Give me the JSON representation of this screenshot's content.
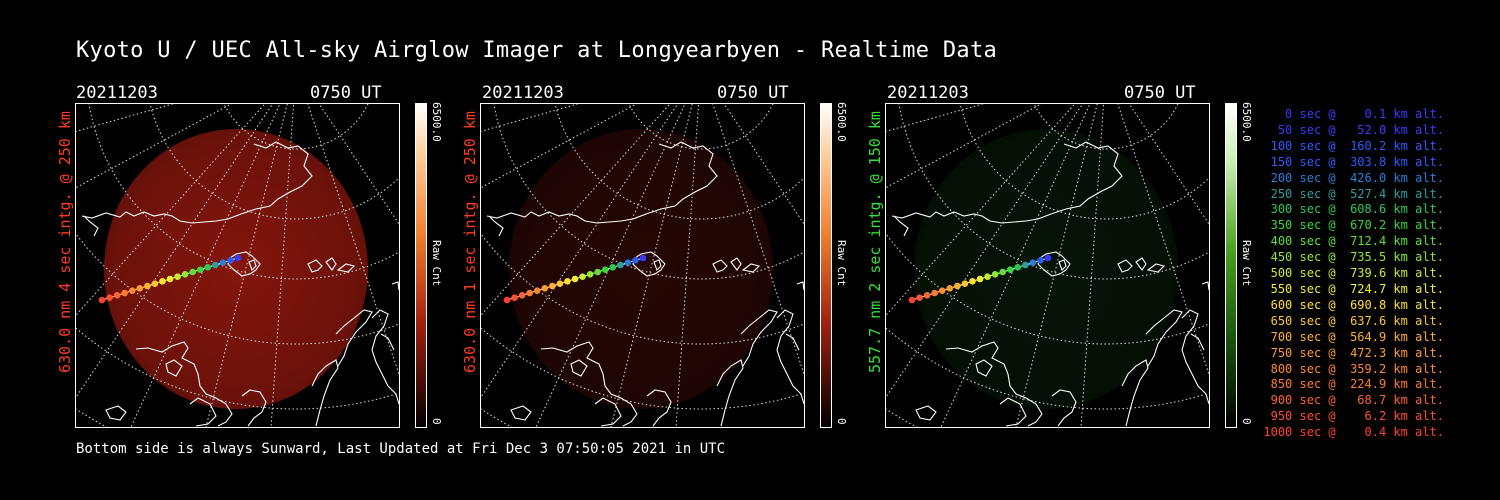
{
  "title": "Kyoto U / UEC All-sky Airglow Imager at Longyearbyen - Realtime Data",
  "footer": "Bottom side is always Sunward, Last Updated at Fri Dec  3 07:50:05 2021 in UTC",
  "colors": {
    "red_label": "#ff3b1f",
    "green_label": "#35e035"
  },
  "panels": [
    {
      "date": "20211203",
      "time": "0750 UT",
      "label": "630.0 nm 4 sec intg. @ 250 km",
      "colorbar_max": "6500.0",
      "colorbar_min": "0",
      "colorbar_unit": "Raw Cnt",
      "tint": "red",
      "intensity": 0.78
    },
    {
      "date": "20211203",
      "time": "0750 UT",
      "label": "630.0 nm 1 sec intg. @ 250 km",
      "colorbar_max": "6500.0",
      "colorbar_min": "0",
      "colorbar_unit": "Raw Cnt",
      "tint": "red",
      "intensity": 0.22
    },
    {
      "date": "20211203",
      "time": "0750 UT",
      "label": "557.7 nm 2 sec intg. @ 150 km",
      "colorbar_max": "6500.0",
      "colorbar_min": "0",
      "colorbar_unit": "Raw Cnt",
      "tint": "green",
      "intensity": 0.28
    }
  ],
  "legend": [
    {
      "text": "   0 sec @    0.1 km alt.",
      "color": "#3a3aff"
    },
    {
      "text": "  50 sec @   52.0 km alt.",
      "color": "#3a3aff"
    },
    {
      "text": " 100 sec @  160.2 km alt.",
      "color": "#2d5cff"
    },
    {
      "text": " 150 sec @  303.8 km alt.",
      "color": "#2d5cff"
    },
    {
      "text": " 200 sec @  426.0 km alt.",
      "color": "#2b7fe0"
    },
    {
      "text": " 250 sec @  527.4 km alt.",
      "color": "#2aa0a0"
    },
    {
      "text": " 300 sec @  608.6 km alt.",
      "color": "#2ec85a"
    },
    {
      "text": " 350 sec @  670.2 km alt.",
      "color": "#36d83a"
    },
    {
      "text": " 400 sec @  712.4 km alt.",
      "color": "#5ee036"
    },
    {
      "text": " 450 sec @  735.5 km alt.",
      "color": "#8fe832"
    },
    {
      "text": " 500 sec @  739.6 km alt.",
      "color": "#c6ec30"
    },
    {
      "text": " 550 sec @  724.7 km alt.",
      "color": "#f0f030"
    },
    {
      "text": " 600 sec @  690.8 km alt.",
      "color": "#ffe030"
    },
    {
      "text": " 650 sec @  637.6 km alt.",
      "color": "#ffc830"
    },
    {
      "text": " 700 sec @  564.9 km alt.",
      "color": "#ffb030"
    },
    {
      "text": " 750 sec @  472.3 km alt.",
      "color": "#ff9c30"
    },
    {
      "text": " 800 sec @  359.2 km alt.",
      "color": "#ff8a30"
    },
    {
      "text": " 850 sec @  224.9 km alt.",
      "color": "#ff7a30"
    },
    {
      "text": " 900 sec @   68.7 km alt.",
      "color": "#ff6430"
    },
    {
      "text": " 950 sec @    6.2 km alt.",
      "color": "#ff5030"
    },
    {
      "text": "1000 sec @    0.4 km alt.",
      "color": "#ff4030"
    }
  ]
}
